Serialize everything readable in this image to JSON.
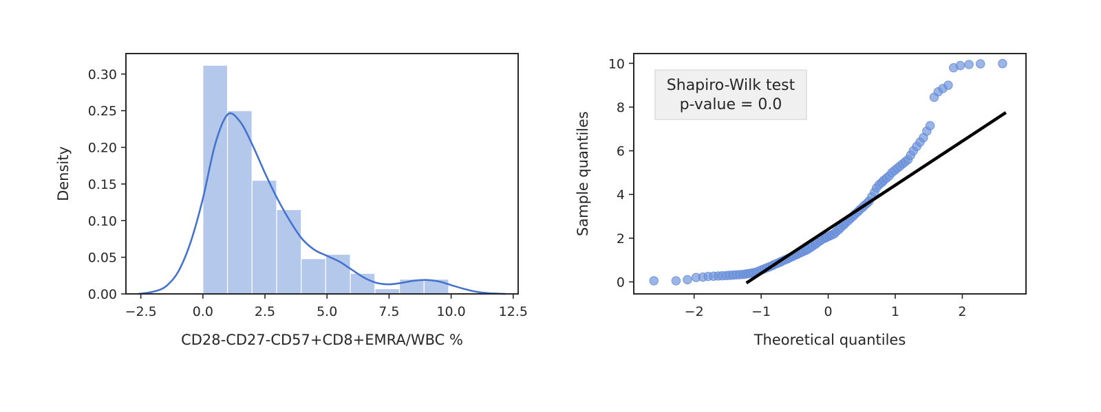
{
  "chart_data": [
    {
      "type": "bar",
      "subtype": "histogram-with-kde",
      "xlabel": "CD28-CD27-CD57+CD8+EMRA/WBC %",
      "ylabel": "Density",
      "xlim": [
        -3.1,
        12.7
      ],
      "ylim": [
        0,
        0.328
      ],
      "xticks": [
        "−2.5",
        "0.0",
        "2.5",
        "5.0",
        "7.5",
        "10.0",
        "12.5"
      ],
      "xtick_values": [
        -2.5,
        0.0,
        2.5,
        5.0,
        7.5,
        10.0,
        12.5
      ],
      "yticks": [
        "0.00",
        "0.05",
        "0.10",
        "0.15",
        "0.20",
        "0.25",
        "0.30"
      ],
      "ytick_values": [
        0,
        0.05,
        0.1,
        0.15,
        0.2,
        0.25,
        0.3
      ],
      "bin_edges": [
        0.0,
        0.99,
        1.98,
        2.97,
        3.96,
        4.95,
        5.94,
        6.93,
        7.92,
        8.91,
        9.9
      ],
      "values": [
        0.312,
        0.25,
        0.155,
        0.115,
        0.048,
        0.054,
        0.028,
        0.007,
        0.02,
        0.02
      ],
      "kde": {
        "x": [
          -2.6,
          -2.0,
          -1.5,
          -1.0,
          -0.5,
          0.0,
          0.5,
          1.0,
          1.5,
          2.0,
          2.5,
          3.0,
          3.5,
          4.0,
          4.5,
          5.0,
          5.5,
          6.0,
          6.5,
          7.0,
          7.5,
          8.0,
          8.5,
          9.0,
          9.5,
          10.0,
          10.5,
          11.0,
          11.5,
          12.2
        ],
        "y": [
          0.0,
          0.003,
          0.01,
          0.03,
          0.07,
          0.13,
          0.205,
          0.245,
          0.235,
          0.203,
          0.165,
          0.13,
          0.1,
          0.075,
          0.06,
          0.052,
          0.044,
          0.033,
          0.022,
          0.015,
          0.013,
          0.015,
          0.018,
          0.019,
          0.017,
          0.012,
          0.007,
          0.003,
          0.001,
          0.0
        ]
      },
      "colors": {
        "bar": "#b4c8ec",
        "kde": "#4472cc"
      }
    },
    {
      "type": "scatter",
      "subtype": "qq-plot",
      "xlabel": "Theoretical quantiles",
      "ylabel": "Sample quantiles",
      "xlim": [
        -2.9,
        2.95
      ],
      "ylim": [
        -0.55,
        10.45
      ],
      "xticks": [
        "−2",
        "−1",
        "0",
        "1",
        "2"
      ],
      "xtick_values": [
        -2,
        -1,
        0,
        1,
        2
      ],
      "yticks": [
        "0",
        "2",
        "4",
        "6",
        "8",
        "10"
      ],
      "ytick_values": [
        0,
        2,
        4,
        6,
        8,
        10
      ],
      "annotation": [
        "Shapiro-Wilk test",
        "p-value = 0.0"
      ],
      "ref_line": {
        "x": [
          -1.22,
          2.65
        ],
        "y": [
          -0.05,
          7.75
        ]
      },
      "points": {
        "x": [
          -2.6,
          -2.27,
          -2.1,
          -1.97,
          -1.87,
          -1.79,
          -1.71,
          -1.64,
          -1.58,
          -1.52,
          -1.47,
          -1.42,
          -1.37,
          -1.32,
          -1.27,
          -1.23,
          -1.19,
          -1.15,
          -1.11,
          -1.07,
          -1.03,
          -0.99,
          -0.95,
          -0.91,
          -0.87,
          -0.83,
          -0.8,
          -0.76,
          -0.72,
          -0.69,
          -0.65,
          -0.61,
          -0.58,
          -0.54,
          -0.51,
          -0.47,
          -0.44,
          -0.4,
          -0.37,
          -0.33,
          -0.3,
          -0.26,
          -0.23,
          -0.19,
          -0.16,
          -0.12,
          -0.09,
          -0.05,
          -0.02,
          0.02,
          0.05,
          0.09,
          0.12,
          0.16,
          0.19,
          0.23,
          0.26,
          0.3,
          0.33,
          0.37,
          0.4,
          0.44,
          0.47,
          0.51,
          0.54,
          0.58,
          0.61,
          0.65,
          0.69,
          0.72,
          0.76,
          0.8,
          0.83,
          0.87,
          0.91,
          0.95,
          0.99,
          1.03,
          1.07,
          1.11,
          1.15,
          1.19,
          1.23,
          1.27,
          1.32,
          1.37,
          1.42,
          1.47,
          1.52,
          1.58,
          1.64,
          1.71,
          1.79,
          1.87,
          1.97,
          2.1,
          2.27,
          2.6
        ],
        "y": [
          0.05,
          0.05,
          0.1,
          0.2,
          0.22,
          0.25,
          0.26,
          0.27,
          0.28,
          0.29,
          0.3,
          0.31,
          0.32,
          0.33,
          0.34,
          0.36,
          0.38,
          0.4,
          0.42,
          0.45,
          0.5,
          0.55,
          0.6,
          0.65,
          0.7,
          0.75,
          0.8,
          0.85,
          0.9,
          0.95,
          1.0,
          1.05,
          1.1,
          1.15,
          1.2,
          1.25,
          1.3,
          1.35,
          1.4,
          1.45,
          1.5,
          1.58,
          1.65,
          1.72,
          1.8,
          1.88,
          1.95,
          2.0,
          2.05,
          2.1,
          2.15,
          2.2,
          2.3,
          2.4,
          2.5,
          2.6,
          2.7,
          2.8,
          2.9,
          3.0,
          3.1,
          3.2,
          3.3,
          3.4,
          3.5,
          3.6,
          3.7,
          3.9,
          4.1,
          4.3,
          4.45,
          4.55,
          4.65,
          4.75,
          4.85,
          5.0,
          5.1,
          5.2,
          5.3,
          5.4,
          5.5,
          5.6,
          5.8,
          6.0,
          6.2,
          6.4,
          6.6,
          6.9,
          7.15,
          8.45,
          8.7,
          8.85,
          9.0,
          9.8,
          9.9,
          9.95,
          9.98,
          9.99
        ],
        "color": "#7196dc"
      }
    }
  ]
}
